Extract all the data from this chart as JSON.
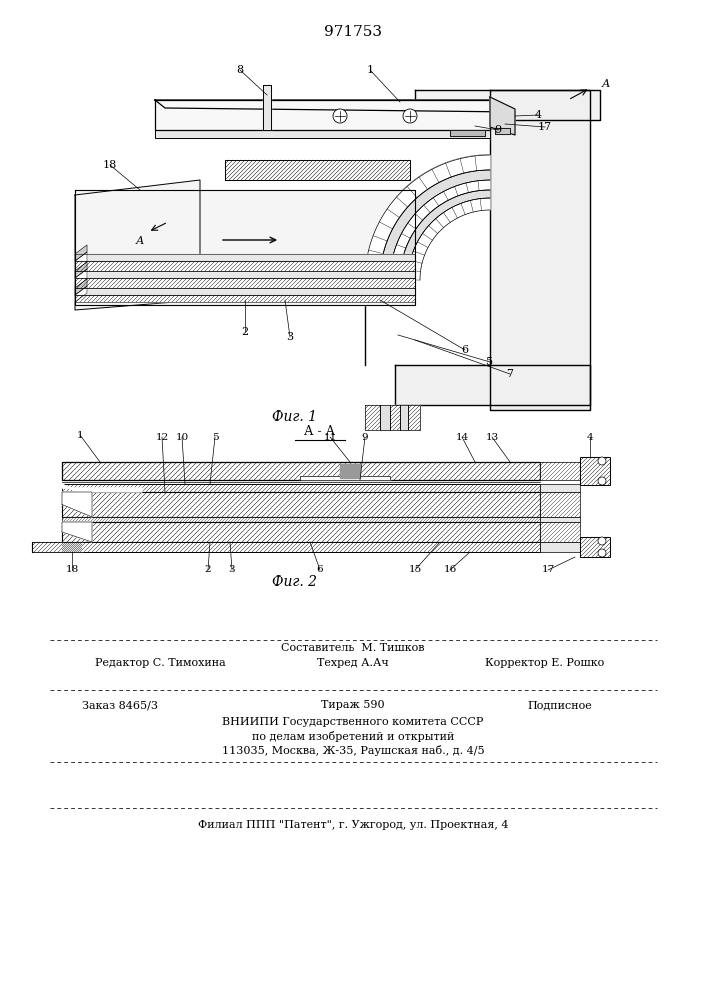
{
  "patent_number": "971753",
  "fig1_caption": "Фиг. 1",
  "fig2_caption": "Фиг. 2",
  "bg_color": "#ffffff",
  "line_color": "#000000",
  "footer_editor": "Редактор С. Тимохина",
  "footer_author": "Составитель  М. Тишков",
  "footer_tech": "Техред А.Ач",
  "footer_corrector": "Корректор Е. Рошко",
  "footer_order": "Заказ 8465/3",
  "footer_tirazh": "Тираж 590",
  "footer_podp": "Подписное",
  "footer_org1": "ВНИИПИ Государственного комитета СССР",
  "footer_org2": "по делам изобретений и открытий",
  "footer_addr": "113035, Москва, Ж-35, Раушская наб., д. 4/5",
  "footer_filial": "Филиал ППП \"Патент\", г. Ужгород, ул. Проектная, 4"
}
